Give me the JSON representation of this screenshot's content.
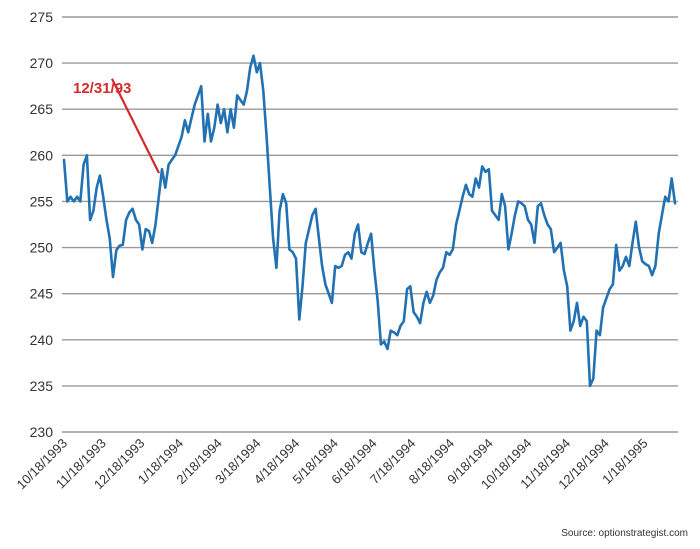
{
  "chart_data": {
    "type": "line",
    "title": "",
    "xlabel": "",
    "ylabel": "",
    "ylim": [
      230,
      275
    ],
    "yticks": [
      230,
      235,
      240,
      245,
      250,
      255,
      260,
      265,
      270,
      275
    ],
    "xticks": [
      "10/18/1993",
      "11/18/1993",
      "12/18/1993",
      "1/18/1994",
      "2/18/1994",
      "3/18/1994",
      "4/18/1994",
      "5/18/1994",
      "6/18/1994",
      "7/18/1994",
      "8/18/1994",
      "9/18/1994",
      "10/18/1994",
      "11/18/1994",
      "12/18/1994",
      "1/18/1995"
    ],
    "grid": true,
    "line_color": "#2271b3",
    "gridline_color": "#999999",
    "series": [
      {
        "values": [
          259.5,
          255.0,
          255.5,
          255.0,
          255.5,
          255.0,
          259.0,
          260.0,
          253.0,
          254.0,
          256.5,
          257.8,
          255.5,
          253.0,
          251.0,
          246.8,
          249.7,
          250.2,
          250.3,
          253.0,
          253.8,
          254.2,
          253.0,
          252.5,
          249.8,
          252.0,
          251.8,
          250.5,
          252.5,
          255.5,
          258.5,
          256.5,
          259.0,
          259.5,
          260.0,
          261.0,
          262.0,
          263.8,
          262.5,
          264.0,
          265.5,
          266.5,
          267.5,
          261.5,
          264.5,
          261.5,
          263.0,
          265.5,
          263.5,
          265.0,
          262.5,
          265.0,
          263.0,
          266.5,
          266.0,
          265.5,
          267.0,
          269.5,
          270.8,
          269.0,
          270.0,
          267.0,
          262.0,
          256.5,
          251.0,
          247.8,
          254.0,
          255.8,
          254.8,
          249.8,
          249.5,
          248.8,
          242.2,
          245.8,
          250.5,
          252.0,
          253.5,
          254.2,
          251.0,
          248.0,
          246.0,
          245.0,
          244.0,
          248.0,
          247.8,
          248.0,
          249.2,
          249.5,
          248.8,
          251.5,
          252.5,
          249.5,
          249.3,
          250.5,
          251.5,
          247.5,
          244.2,
          239.5,
          239.8,
          239.0,
          241.0,
          240.8,
          240.5,
          241.5,
          242.0,
          245.5,
          245.8,
          243.0,
          242.5,
          241.8,
          244.0,
          245.2,
          244.0,
          244.8,
          246.5,
          247.3,
          247.8,
          249.5,
          249.2,
          249.8,
          252.5,
          254.0,
          255.5,
          256.8,
          255.8,
          255.5,
          257.5,
          256.5,
          258.8,
          258.2,
          258.5,
          254.0,
          253.5,
          253.0,
          255.8,
          254.5,
          249.8,
          251.5,
          253.5,
          255.0,
          254.8,
          254.5,
          253.0,
          252.5,
          250.5,
          254.5,
          254.8,
          253.5,
          252.5,
          252.0,
          249.5,
          250.0,
          250.5,
          247.5,
          245.8,
          241.0,
          242.0,
          244.0,
          241.5,
          242.5,
          242.0,
          235.0,
          235.8,
          241.0,
          240.5,
          243.5,
          244.5,
          245.5,
          246.0,
          250.3,
          247.5,
          248.0,
          249.0,
          248.0,
          250.5,
          252.8,
          250.0,
          248.5,
          248.2,
          248.0,
          247.0,
          248.0,
          251.5,
          253.5,
          255.5,
          255.0,
          257.5,
          254.8
        ]
      }
    ],
    "annotation": {
      "label": "12/31/93",
      "color": "#d12b2b",
      "point_index": 30,
      "arrow_from_value": 268.3
    }
  },
  "source": "Source: optionstrategist.com"
}
